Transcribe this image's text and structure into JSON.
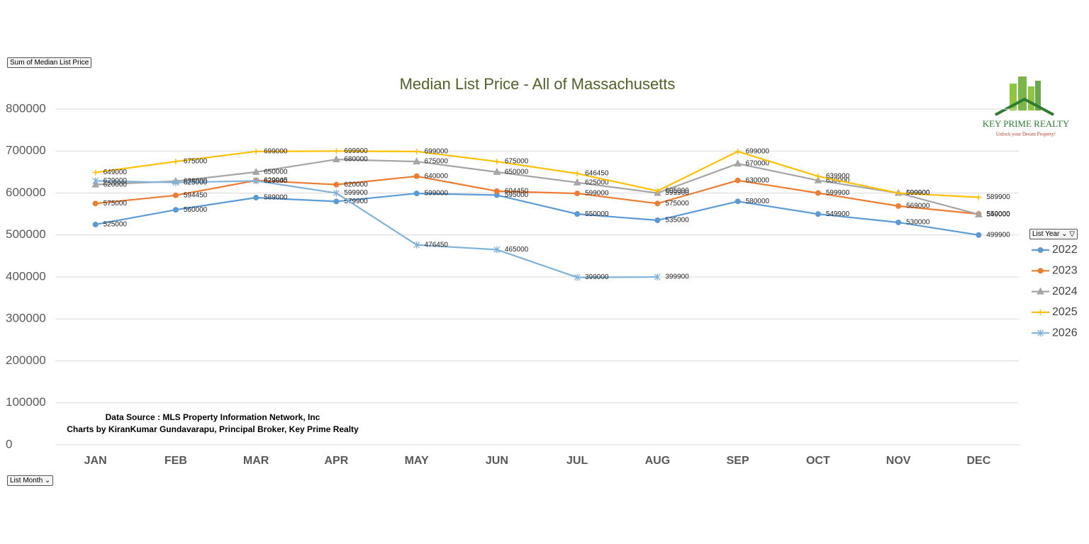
{
  "controls": {
    "value_field": "Sum of Median List Price",
    "row_field": "List Month",
    "legend_field": "List Year"
  },
  "logo": {
    "name": "KEY PRIME REALTY",
    "tagline": "Unlock your Dream Property!"
  },
  "chart_data": {
    "type": "line",
    "title": "Median List Price    - All of Massachusetts",
    "notes": [
      "Data Source : MLS Property Information Network, Inc",
      "Charts by KiranKumar Gundavarapu, Principal Broker, Key Prime Realty"
    ],
    "categories": [
      "JAN",
      "FEB",
      "MAR",
      "APR",
      "MAY",
      "JUN",
      "JUL",
      "AUG",
      "SEP",
      "OCT",
      "NOV",
      "DEC"
    ],
    "series": [
      {
        "name": "2022",
        "color": "#5b9bd5",
        "marker": "circle",
        "values": [
          525000,
          560000,
          589000,
          579900,
          599000,
          595000,
          550000,
          535000,
          580000,
          549900,
          530000,
          499900
        ]
      },
      {
        "name": "2023",
        "color": "#ed7d31",
        "marker": "circle",
        "values": [
          575000,
          594450,
          629945,
          620000,
          640000,
          604450,
          599000,
          575000,
          630000,
          599900,
          569000,
          550000
        ]
      },
      {
        "name": "2024",
        "color": "#a5a5a5",
        "marker": "triangle",
        "values": [
          620000,
          628000,
          650000,
          680000,
          675000,
          650000,
          625000,
          599900,
          670000,
          630000,
          600000,
          549000
        ]
      },
      {
        "name": "2025",
        "color": "#ffc000",
        "marker": "dash",
        "values": [
          649000,
          675000,
          699000,
          699900,
          699000,
          675000,
          646450,
          605000,
          699000,
          639900,
          599900,
          589900
        ]
      },
      {
        "name": "2026",
        "color": "#7fb3da",
        "marker": "star",
        "values": [
          629000,
          625000,
          629000,
          599900,
          476450,
          465000,
          399000,
          399900,
          null,
          null,
          null,
          null
        ]
      }
    ],
    "ylim": [
      0,
      800000
    ],
    "yticks": [
      0,
      100000,
      200000,
      300000,
      400000,
      500000,
      600000,
      700000,
      800000
    ],
    "grid": true,
    "legend": "right"
  }
}
